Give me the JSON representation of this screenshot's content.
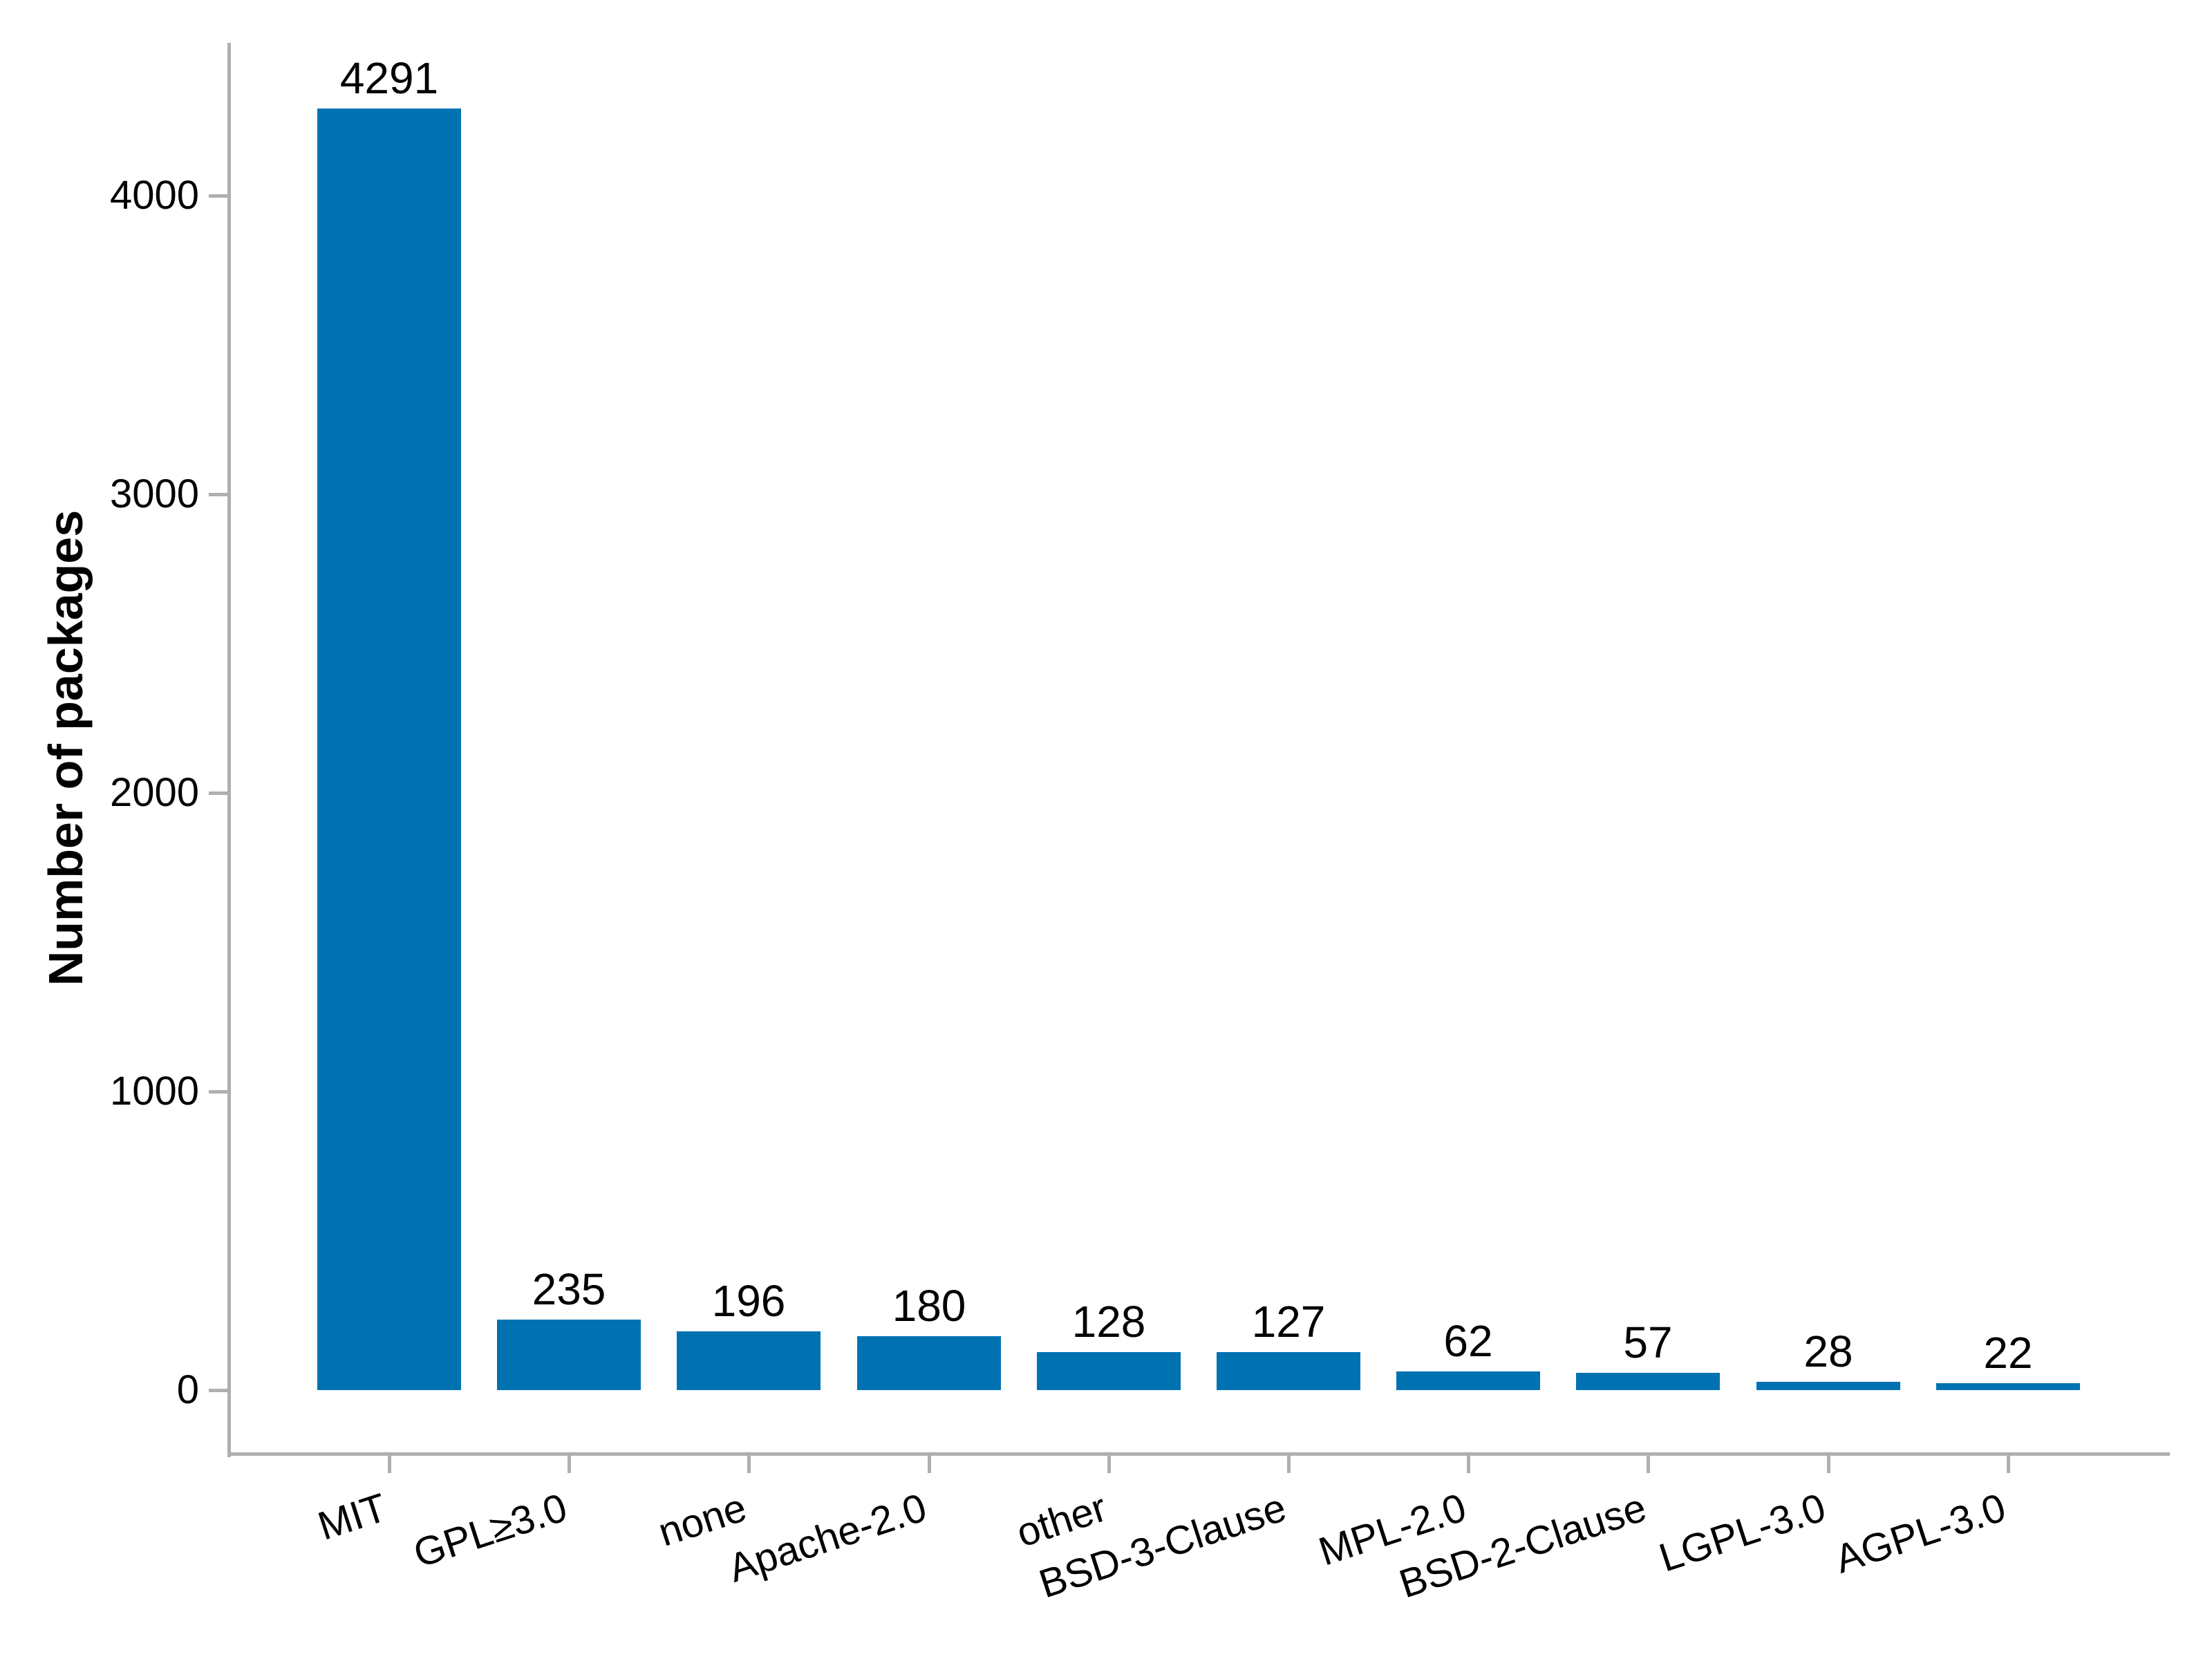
{
  "chart_data": {
    "type": "bar",
    "categories": [
      "MIT",
      "GPL≥3.0",
      "none",
      "Apache-2.0",
      "other",
      "BSD-3-Clause",
      "MPL-2.0",
      "BSD-2-Clause",
      "LGPL-3.0",
      "AGPL-3.0"
    ],
    "values": [
      4291,
      235,
      196,
      180,
      128,
      127,
      62,
      57,
      28,
      22
    ],
    "title": "",
    "xlabel": "",
    "ylabel": "Number of packages",
    "yticks": [
      0,
      1000,
      2000,
      3000,
      4000
    ],
    "ylim": [
      -215,
      4505
    ],
    "grid": false,
    "legend": false,
    "bar_color": "#0072B2",
    "axis_color": "#AFAFAF",
    "text_color": "#000000",
    "background_color": "#FFFFFF",
    "x_tick_rotation_deg": 18
  }
}
